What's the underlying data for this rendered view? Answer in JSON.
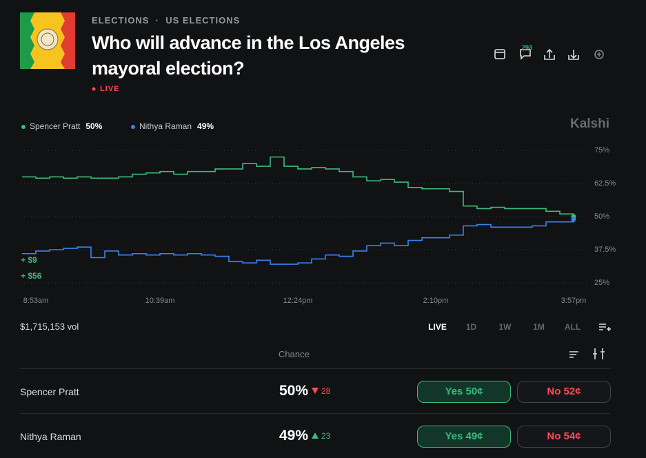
{
  "header": {
    "breadcrumb": [
      "ELECTIONS",
      "US ELECTIONS"
    ],
    "title": "Who will advance in the Los Angeles mayoral election?",
    "status": "LIVE",
    "comments": 293
  },
  "chart_data": {
    "type": "line",
    "watermark": "Kalshi",
    "categories": [
      null,
      "8:53am",
      null,
      null,
      null,
      null,
      null,
      null,
      null,
      null,
      "10:39am",
      null,
      null,
      null,
      null,
      null,
      null,
      null,
      null,
      null,
      "12:24pm",
      null,
      null,
      null,
      null,
      null,
      null,
      null,
      null,
      null,
      "2:10pm",
      null,
      null,
      null,
      null,
      null,
      null,
      null,
      null,
      null,
      "3:57pm"
    ],
    "series": [
      {
        "name": "Spencer Pratt",
        "current": "50%",
        "color": "#3dbb7b",
        "values": [
          65,
          64.5,
          65,
          64.5,
          65,
          64.5,
          64.5,
          65,
          66,
          66.5,
          67,
          66,
          67,
          67,
          68,
          68,
          70,
          69,
          72.5,
          69,
          68,
          68.5,
          68,
          67,
          65,
          63.5,
          64,
          63,
          61,
          60.5,
          60.5,
          59.5,
          54,
          53,
          53.5,
          53,
          53,
          53,
          52,
          51,
          50
        ]
      },
      {
        "name": "Nithya Raman",
        "current": "49%",
        "color": "#3b82f0",
        "values": [
          36,
          37,
          37.5,
          38,
          38.5,
          34.5,
          37,
          35.5,
          36,
          35.5,
          36,
          35.5,
          36,
          35.5,
          35,
          33,
          32.5,
          33.5,
          32,
          32,
          32.5,
          34,
          35.5,
          35,
          37,
          39,
          40,
          39,
          41,
          42,
          42,
          43,
          46.5,
          47,
          46,
          46,
          46,
          46.5,
          48,
          48,
          49
        ]
      }
    ],
    "ylim": [
      22,
      78
    ],
    "yticks": [
      {
        "value": 75,
        "label": "75%"
      },
      {
        "value": 62.5,
        "label": "62.5%"
      },
      {
        "value": 50,
        "label": "50%"
      },
      {
        "value": 37.5,
        "label": "37.5%"
      },
      {
        "value": 25,
        "label": "25%"
      }
    ],
    "grid": true,
    "annotations": [
      "+ $9",
      "+ $56"
    ]
  },
  "volume": "$1,715,153 vol",
  "ranges": [
    "LIVE",
    "1D",
    "1W",
    "1M",
    "ALL"
  ],
  "table": {
    "header": "Chance",
    "rows": [
      {
        "name": "Spencer Pratt",
        "chance": "50%",
        "change": 28,
        "direction": "down",
        "yes": "Yes 50¢",
        "no": "No 52¢"
      },
      {
        "name": "Nithya Raman",
        "chance": "49%",
        "change": 23,
        "direction": "up",
        "yes": "Yes 49¢",
        "no": "No 54¢"
      }
    ]
  }
}
